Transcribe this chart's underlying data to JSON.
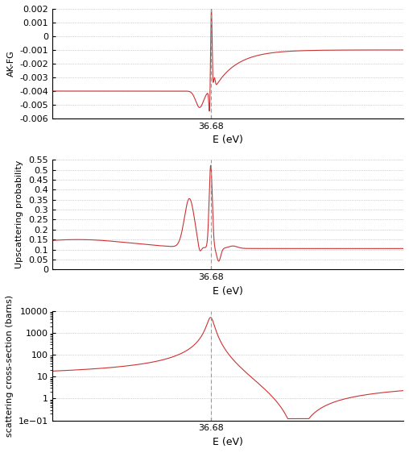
{
  "resonance_energy": 36.68,
  "line_color": "#cc3333",
  "vline_color": "#999999",
  "grid_color": "#aaaaaa",
  "background_color": "#ffffff",
  "panel1": {
    "ylabel": "AK-FG",
    "xlabel": "E (eV)",
    "ylim": [
      -0.006,
      0.002
    ],
    "yticks": [
      -0.006,
      -0.005,
      -0.004,
      -0.003,
      -0.002,
      -0.001,
      0,
      0.001,
      0.002
    ]
  },
  "panel2": {
    "ylabel": "Upscattering probability",
    "xlabel": "E (eV)",
    "ylim": [
      0,
      0.55
    ],
    "yticks": [
      0,
      0.05,
      0.1,
      0.15,
      0.2,
      0.25,
      0.3,
      0.35,
      0.4,
      0.45,
      0.5,
      0.55
    ]
  },
  "panel3": {
    "ylabel": "scattering cross-section (barns)",
    "xlabel": "E (eV)",
    "ylim_log": [
      0.1,
      10000
    ],
    "yticks_log": [
      0.1,
      1,
      10,
      100,
      1000,
      10000
    ]
  }
}
